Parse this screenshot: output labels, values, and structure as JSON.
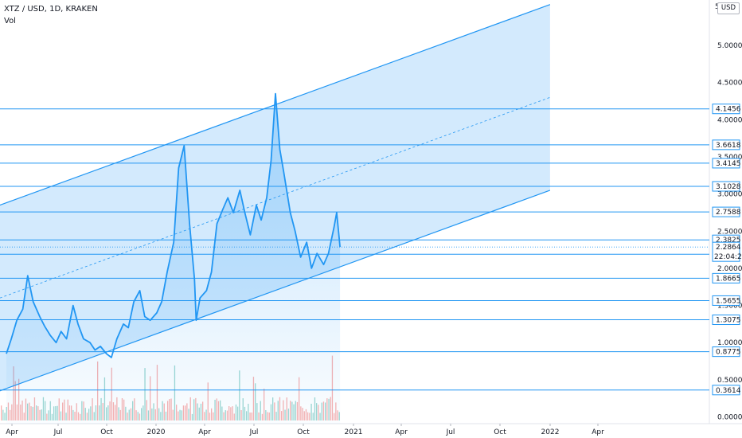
{
  "legend": {
    "symbol": "XTZ / USD, 1D, KRAKEN",
    "volume_label": "Vol"
  },
  "price_axis": {
    "currency_badge": "USD",
    "current_price": "2.2864",
    "countdown": "22:04:28"
  },
  "chart_data": {
    "type": "line",
    "title": "XTZ / USD, 1D, KRAKEN",
    "xlabel": "",
    "ylabel": "",
    "x_ticks": [
      "Apr",
      "Jul",
      "Oct",
      "2020",
      "Apr",
      "Jul",
      "Oct",
      "2021",
      "Apr",
      "Jul",
      "Oct",
      "2022",
      "Apr"
    ],
    "y_ticks": [
      "5",
      "5.0000",
      "4.5000",
      "4.0000",
      "3.5000",
      "3.0000",
      "2.5000",
      "2.0000",
      "1.5000",
      "1.0000",
      "0.5000",
      "0.0000"
    ],
    "ylim": [
      -0.05,
      5.6
    ],
    "grid": false,
    "series": [
      {
        "name": "",
        "color": "#2196f3",
        "x": [
          "2019-04-01",
          "2019-04-10",
          "2019-04-20",
          "2019-05-01",
          "2019-05-10",
          "2019-05-20",
          "2019-06-01",
          "2019-06-10",
          "2019-06-20",
          "2019-07-01",
          "2019-07-10",
          "2019-07-20",
          "2019-08-01",
          "2019-08-10",
          "2019-08-20",
          "2019-09-01",
          "2019-09-10",
          "2019-09-20",
          "2019-10-01",
          "2019-10-10",
          "2019-10-20",
          "2019-11-01",
          "2019-11-10",
          "2019-11-20",
          "2019-12-01",
          "2019-12-10",
          "2019-12-20",
          "2020-01-01",
          "2020-01-10",
          "2020-01-20",
          "2020-02-01",
          "2020-02-10",
          "2020-02-20",
          "2020-03-01",
          "2020-03-10",
          "2020-03-13",
          "2020-03-20",
          "2020-04-01",
          "2020-04-10",
          "2020-04-20",
          "2020-05-01",
          "2020-05-10",
          "2020-05-20",
          "2020-06-01",
          "2020-06-10",
          "2020-06-20",
          "2020-07-01",
          "2020-07-10",
          "2020-07-20",
          "2020-07-28",
          "2020-08-05",
          "2020-08-13",
          "2020-08-20",
          "2020-09-01",
          "2020-09-10",
          "2020-09-20",
          "2020-10-01",
          "2020-10-10",
          "2020-10-20",
          "2020-11-01",
          "2020-11-10",
          "2020-11-20",
          "2020-11-25",
          "2020-12-01"
        ],
        "y": [
          0.85,
          1.05,
          1.3,
          1.45,
          1.9,
          1.55,
          1.35,
          1.22,
          1.1,
          1.0,
          1.15,
          1.05,
          1.5,
          1.25,
          1.05,
          1.0,
          0.9,
          0.95,
          0.85,
          0.8,
          1.05,
          1.25,
          1.2,
          1.55,
          1.7,
          1.35,
          1.3,
          1.4,
          1.55,
          1.95,
          2.35,
          3.35,
          3.65,
          2.6,
          1.85,
          1.3,
          1.6,
          1.7,
          1.95,
          2.6,
          2.8,
          2.95,
          2.75,
          3.05,
          2.75,
          2.45,
          2.85,
          2.65,
          2.95,
          3.45,
          4.35,
          3.6,
          3.3,
          2.75,
          2.5,
          2.15,
          2.35,
          2.0,
          2.2,
          2.05,
          2.2,
          2.55,
          2.75,
          2.2864
        ]
      }
    ],
    "volume": {
      "name": "Vol",
      "up_color": "#26a69a",
      "down_color": "#ef5350"
    },
    "price_levels": [
      "4.1456",
      "3.6618",
      "3.4145",
      "3.1028",
      "2.7588",
      "2.3825",
      "2.1890",
      "1.8665",
      "1.5655",
      "1.3075",
      "0.8775",
      "0.3614"
    ],
    "channel": {
      "x": [
        "2019-03-20",
        "2021-12-20"
      ],
      "upper": [
        2.85,
        5.55
      ],
      "middle": [
        1.6,
        4.3
      ],
      "lower": [
        0.35,
        3.05
      ]
    }
  }
}
